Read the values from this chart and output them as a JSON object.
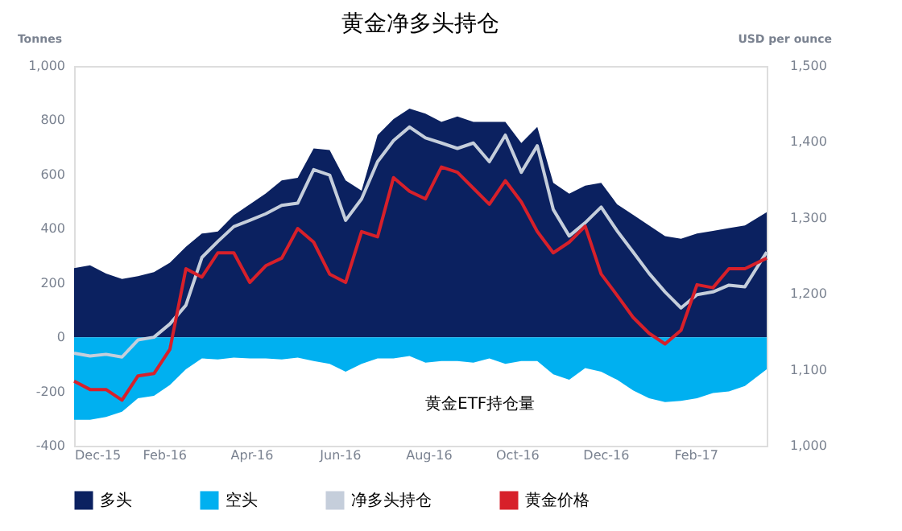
{
  "chart_data": {
    "type": "area",
    "title": "黄金净多头持仓",
    "ylabel": "Tonnes",
    "y2label": "USD per ounce",
    "annotations": [
      "黄金ETF持仓量"
    ],
    "x": [
      "2015-12-01",
      "2015-12-12",
      "2015-12-23",
      "2016-01-03",
      "2016-01-14",
      "2016-01-25",
      "2016-02-05",
      "2016-02-16",
      "2016-02-27",
      "2016-03-09",
      "2016-03-20",
      "2016-03-31",
      "2016-04-11",
      "2016-04-22",
      "2016-05-03",
      "2016-05-14",
      "2016-05-25",
      "2016-06-05",
      "2016-06-16",
      "2016-06-27",
      "2016-07-08",
      "2016-07-19",
      "2016-07-30",
      "2016-08-10",
      "2016-08-21",
      "2016-09-01",
      "2016-09-12",
      "2016-09-23",
      "2016-10-04",
      "2016-10-15",
      "2016-10-26",
      "2016-11-06",
      "2016-11-17",
      "2016-11-28",
      "2016-12-09",
      "2016-12-20",
      "2016-12-31",
      "2017-01-11",
      "2017-01-22",
      "2017-02-02",
      "2017-02-13",
      "2017-02-24",
      "2017-03-07",
      "2017-03-22"
    ],
    "series": [
      {
        "name": "多头",
        "color": "#0b2160",
        "values": [
          255,
          265,
          235,
          215,
          225,
          240,
          275,
          333,
          382,
          390,
          450,
          490,
          530,
          578,
          588,
          696,
          690,
          578,
          540,
          745,
          804,
          843,
          824,
          794,
          814,
          794,
          794,
          794,
          716,
          775,
          569,
          529,
          559,
          569,
          490,
          451,
          412,
          373,
          363,
          382,
          392,
          402,
          412,
          461
        ]
      },
      {
        "name": "空头",
        "color": "#00b0f0",
        "values": [
          -304,
          -304,
          -294,
          -275,
          -225,
          -216,
          -176,
          -118,
          -78,
          -82,
          -75,
          -78,
          -78,
          -82,
          -75,
          -88,
          -98,
          -127,
          -98,
          -78,
          -78,
          -69,
          -94,
          -88,
          -88,
          -94,
          -78,
          -98,
          -88,
          -88,
          -137,
          -157,
          -114,
          -127,
          -157,
          -196,
          -225,
          -239,
          -235,
          -225,
          -206,
          -200,
          -180,
          -118
        ]
      },
      {
        "name": "净多头持仓",
        "type": "line",
        "color": "#c5cedb",
        "values": [
          -59,
          -69,
          -63,
          -73,
          -10,
          0,
          49,
          118,
          294,
          353,
          408,
          431,
          455,
          486,
          494,
          618,
          598,
          431,
          510,
          647,
          725,
          775,
          735,
          716,
          696,
          716,
          647,
          745,
          608,
          706,
          471,
          373,
          422,
          480,
          392,
          314,
          235,
          167,
          108,
          157,
          167,
          192,
          186,
          314
        ]
      },
      {
        "name": "黄金价格",
        "type": "line",
        "axis": "y2",
        "color": "#d7202a",
        "values": [
          1085,
          1074,
          1074,
          1060,
          1092,
          1095,
          1127,
          1233,
          1222,
          1254,
          1254,
          1215,
          1237,
          1247,
          1286,
          1268,
          1226,
          1215,
          1282,
          1275,
          1353,
          1335,
          1325,
          1367,
          1360,
          1339,
          1318,
          1349,
          1321,
          1282,
          1254,
          1268,
          1289,
          1226,
          1198,
          1169,
          1148,
          1134,
          1152,
          1212,
          1208,
          1233,
          1233,
          1247
        ]
      }
    ],
    "xlim": [
      "2015-12-01",
      "2017-03-22"
    ],
    "xticks": [
      {
        "value": "2015-12-01",
        "label": "Dec-15"
      },
      {
        "value": "2016-02-01",
        "label": "Feb-16"
      },
      {
        "value": "2016-04-01",
        "label": "Apr-16"
      },
      {
        "value": "2016-06-01",
        "label": "Jun-16"
      },
      {
        "value": "2016-08-01",
        "label": "Aug-16"
      },
      {
        "value": "2016-10-01",
        "label": "Oct-16"
      },
      {
        "value": "2016-12-01",
        "label": "Dec-16"
      },
      {
        "value": "2017-02-01",
        "label": "Feb-17"
      }
    ],
    "ylim": [
      -400,
      1000
    ],
    "yticks": [
      -400,
      -200,
      0,
      200,
      400,
      600,
      800,
      {
        "value": 1000,
        "label": "1,000"
      }
    ],
    "y2lim": [
      1000,
      1500
    ],
    "y2ticks": [
      {
        "value": 1000,
        "label": "1,000"
      },
      {
        "value": 1100,
        "label": "1,100"
      },
      {
        "value": 1200,
        "label": "1,200"
      },
      {
        "value": 1300,
        "label": "1,300"
      },
      {
        "value": 1400,
        "label": "1,400"
      },
      {
        "value": 1500,
        "label": "1,500"
      }
    ],
    "grid": false,
    "legend": "bottom"
  }
}
